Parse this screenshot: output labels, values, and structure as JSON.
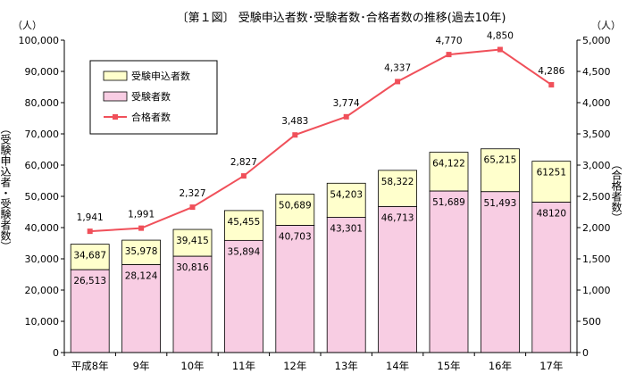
{
  "chart_data": {
    "type": "bar",
    "title": "〔第１図〕 受験申込者数･受験者数･合格者数の推移(過去10年)",
    "left_axis_unit": "（人）",
    "right_axis_unit": "（人）",
    "left_axis_label": "（受験申込者・受験者数）",
    "right_axis_label": "（合格者数）",
    "categories": [
      "平成8年",
      "9年",
      "10年",
      "11年",
      "12年",
      "13年",
      "14年",
      "15年",
      "16年",
      "17年"
    ],
    "ylim_left": [
      0,
      100000
    ],
    "ylim_right": [
      0,
      5000
    ],
    "left_ticks": [
      "0",
      "10,000",
      "20,000",
      "30,000",
      "40,000",
      "50,000",
      "60,000",
      "70,000",
      "80,000",
      "90,000",
      "100,000"
    ],
    "right_ticks": [
      "0",
      "500",
      "1,000",
      "1,500",
      "2,000",
      "2,500",
      "3,000",
      "3,500",
      "4,000",
      "4,500",
      "5,000"
    ],
    "series": [
      {
        "name": "受験申込者数",
        "axis": "left",
        "kind": "bar",
        "color": "#ffffcc",
        "values": [
          34687,
          35978,
          39415,
          45455,
          50689,
          54203,
          58322,
          64122,
          65215,
          61251
        ],
        "labels": [
          "34,687",
          "35,978",
          "39,415",
          "45,455",
          "50,689",
          "54,203",
          "58,322",
          "64,122",
          "65,215",
          "61251"
        ]
      },
      {
        "name": "受験者数",
        "axis": "left",
        "kind": "bar",
        "color": "#f8cde3",
        "values": [
          26513,
          28124,
          30816,
          35894,
          40703,
          43301,
          46713,
          51689,
          51493,
          48120
        ],
        "labels": [
          "26,513",
          "28,124",
          "30,816",
          "35,894",
          "40,703",
          "43,301",
          "46,713",
          "51,689",
          "51,493",
          "48120"
        ]
      },
      {
        "name": "合格者数",
        "axis": "right",
        "kind": "line",
        "color": "#f0505a",
        "values": [
          1941,
          1991,
          2327,
          2827,
          3483,
          3774,
          4337,
          4770,
          4850,
          4286
        ],
        "labels": [
          "1,941",
          "1,991",
          "2,327",
          "2,827",
          "3,483",
          "3,774",
          "4,337",
          "4,770",
          "4,850",
          "4,286"
        ]
      }
    ],
    "grid": false,
    "legend_position": "top-left"
  }
}
